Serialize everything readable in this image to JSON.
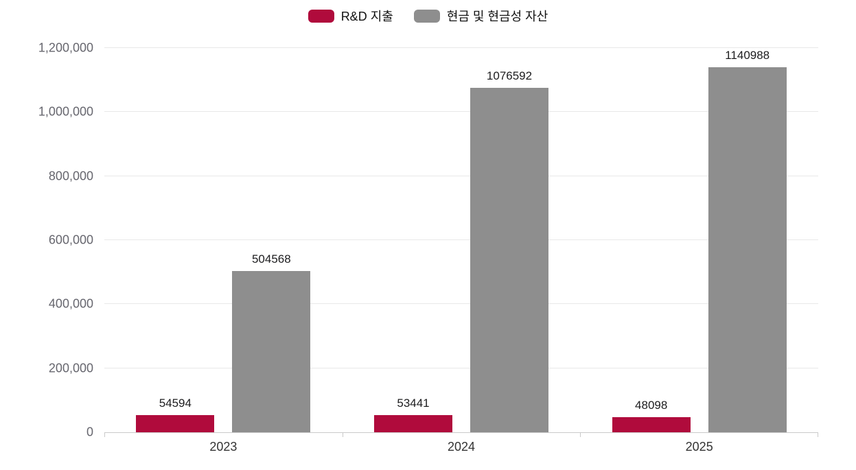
{
  "chart_data": {
    "type": "bar",
    "categories": [
      "2023",
      "2024",
      "2025"
    ],
    "series": [
      {
        "name": "R&D 지출",
        "color": "#b00b3c",
        "values": [
          54594,
          53441,
          48098
        ]
      },
      {
        "name": "현금 및 현금성 자산",
        "color": "#8e8e8e",
        "values": [
          504568,
          1076592,
          1140988
        ]
      }
    ],
    "title": "",
    "xlabel": "",
    "ylabel": "",
    "ylim": [
      0,
      1200000
    ],
    "ytick_interval": 200000,
    "yticks": [
      "0",
      "200,000",
      "400,000",
      "600,000",
      "800,000",
      "1,000,000",
      "1,200,000"
    ],
    "grid": true,
    "legend_position": "top"
  }
}
